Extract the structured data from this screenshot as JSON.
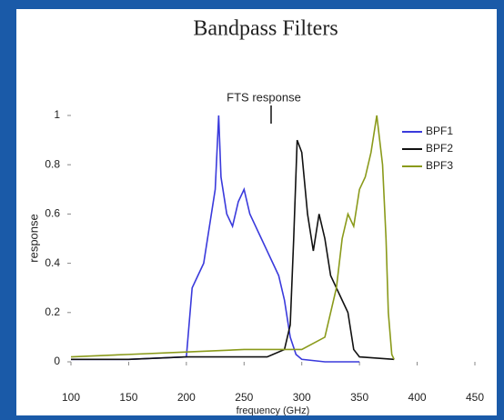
{
  "chart_data": {
    "type": "line",
    "title": "Bandpass Filters",
    "annotation": "FTS response",
    "x_label": "frequency (GHz)",
    "y_label": "response",
    "xlim": [
      100,
      450
    ],
    "xticks": [
      100,
      150,
      200,
      250,
      300,
      350,
      400,
      450
    ],
    "ylim": [
      0,
      1
    ],
    "yticks": [
      0,
      0.2,
      0.4,
      0.6,
      0.8,
      1
    ],
    "legend": "upper right",
    "series": [
      {
        "name": "BPF1",
        "color": "#3a3adc",
        "x": [
          100,
          150,
          200,
          205,
          210,
          215,
          220,
          225,
          228,
          230,
          235,
          240,
          245,
          250,
          255,
          260,
          265,
          270,
          275,
          280,
          285,
          290,
          295,
          300,
          320,
          350
        ],
        "values": [
          0.01,
          0.01,
          0.02,
          0.3,
          0.35,
          0.4,
          0.55,
          0.7,
          1.0,
          0.75,
          0.6,
          0.55,
          0.65,
          0.7,
          0.6,
          0.55,
          0.5,
          0.45,
          0.4,
          0.35,
          0.25,
          0.1,
          0.03,
          0.01,
          0,
          0
        ]
      },
      {
        "name": "BPF2",
        "color": "#111111",
        "x": [
          100,
          150,
          200,
          250,
          270,
          275,
          285,
          290,
          293,
          296,
          300,
          305,
          310,
          315,
          320,
          325,
          330,
          335,
          340,
          345,
          350,
          380
        ],
        "values": [
          0.01,
          0.01,
          0.02,
          0.02,
          0.02,
          0.03,
          0.05,
          0.15,
          0.5,
          0.9,
          0.85,
          0.6,
          0.45,
          0.6,
          0.5,
          0.35,
          0.3,
          0.25,
          0.2,
          0.05,
          0.02,
          0.01
        ]
      },
      {
        "name": "BPF3",
        "color": "#8a9a1a",
        "x": [
          100,
          150,
          200,
          250,
          300,
          320,
          330,
          335,
          340,
          345,
          350,
          355,
          360,
          365,
          370,
          373,
          375,
          378,
          380
        ],
        "values": [
          0.02,
          0.03,
          0.04,
          0.05,
          0.05,
          0.1,
          0.3,
          0.5,
          0.6,
          0.55,
          0.7,
          0.75,
          0.85,
          1.0,
          0.8,
          0.5,
          0.2,
          0.03,
          0.01
        ]
      }
    ]
  }
}
